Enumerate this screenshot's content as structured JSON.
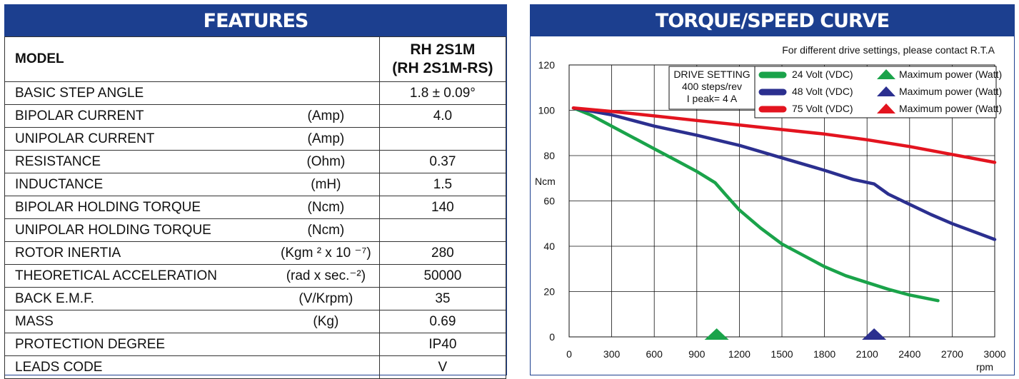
{
  "features": {
    "title": "FEATURES",
    "model_label": "MODEL",
    "model_value": [
      "RH 2S1M",
      "(RH 2S1M-RS)"
    ],
    "rows": [
      {
        "name": "BASIC STEP ANGLE",
        "unit": "",
        "value": "1.8 ± 0.09°"
      },
      {
        "name": "BIPOLAR CURRENT",
        "unit": "(Amp)",
        "value": "4.0"
      },
      {
        "name": "UNIPOLAR CURRENT",
        "unit": "(Amp)",
        "value": ""
      },
      {
        "name": "RESISTANCE",
        "unit": "(Ohm)",
        "value": "0.37"
      },
      {
        "name": "INDUCTANCE",
        "unit": "(mH)",
        "value": "1.5"
      },
      {
        "name": "BIPOLAR HOLDING TORQUE",
        "unit": "(Ncm)",
        "value": "140"
      },
      {
        "name": "UNIPOLAR  HOLDING TORQUE",
        "unit": "(Ncm)",
        "value": ""
      },
      {
        "name": "ROTOR INERTIA",
        "unit": "(Kgm ² x 10 ⁻⁷)",
        "value": "280"
      },
      {
        "name": "THEORETICAL ACCELERATION",
        "unit": "(rad x sec.⁻²)",
        "value": "50000"
      },
      {
        "name": "BACK E.M.F.",
        "unit": "(V/Krpm)",
        "value": "35"
      },
      {
        "name": "MASS",
        "unit": "(Kg)",
        "value": "0.69"
      },
      {
        "name": "PROTECTION DEGREE",
        "unit": "",
        "value": "IP40"
      },
      {
        "name": "LEADS CODE",
        "unit": "",
        "value": "V"
      }
    ]
  },
  "torque_curve": {
    "title": "TORQUE/SPEED CURVE",
    "note": "For different drive settings, please contact R.T.A"
  },
  "chart_data": {
    "type": "line",
    "xlabel": "rpm",
    "ylabel": "Ncm",
    "xlim": [
      0,
      3000
    ],
    "ylim": [
      0,
      120
    ],
    "x_ticks": [
      0,
      300,
      600,
      900,
      1200,
      1500,
      1800,
      2100,
      2400,
      2700,
      3000
    ],
    "y_ticks": [
      0,
      20,
      40,
      60,
      80,
      100,
      120
    ],
    "grid": true,
    "legend_position": "top-right",
    "drive_setting": [
      "DRIVE SETTING",
      "400 steps/rev",
      "I peak= 4 A"
    ],
    "series": [
      {
        "name": "24 Volt (VDC)",
        "color": "#1aa34a",
        "x": [
          30,
          150,
          300,
          450,
          600,
          750,
          900,
          1030,
          1100,
          1200,
          1350,
          1500,
          1650,
          1800,
          1950,
          2100,
          2250,
          2400,
          2600
        ],
        "y": [
          101,
          98,
          93,
          88,
          83,
          78,
          73,
          68,
          63,
          56,
          48,
          41,
          36,
          31,
          27,
          24,
          21,
          18.5,
          16
        ]
      },
      {
        "name": "48 Volt (VDC)",
        "color": "#2b2f8f",
        "x": [
          30,
          300,
          600,
          900,
          1200,
          1500,
          1800,
          2000,
          2150,
          2250,
          2400,
          2550,
          2700,
          2850,
          3000
        ],
        "y": [
          101,
          98,
          93,
          89,
          84.5,
          79,
          73.5,
          69.5,
          67.5,
          63,
          58.5,
          54,
          50,
          46.5,
          43
        ]
      },
      {
        "name": "75 Volt (VDC)",
        "color": "#e3141f",
        "x": [
          30,
          300,
          600,
          900,
          1200,
          1500,
          1800,
          2100,
          2400,
          2700,
          3000
        ],
        "y": [
          101,
          99.5,
          97.5,
          95.5,
          93.5,
          91.5,
          89.5,
          87,
          84,
          80.5,
          77
        ]
      }
    ],
    "max_power_label": "Maximum power (Watt)",
    "max_power_markers": [
      {
        "series": "24 Volt (VDC)",
        "x": 1040
      },
      {
        "series": "48 Volt (VDC)",
        "x": 2150
      }
    ]
  }
}
